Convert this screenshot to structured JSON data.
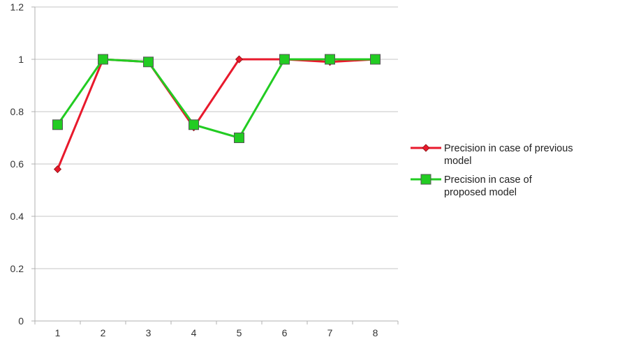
{
  "chart_data": {
    "type": "line",
    "categories": [
      "1",
      "2",
      "3",
      "4",
      "5",
      "6",
      "7",
      "8"
    ],
    "ylim": [
      0,
      1.2
    ],
    "yticks": [
      0,
      0.2,
      0.4,
      0.6,
      0.8,
      1,
      1.2
    ],
    "ytick_labels": [
      "0",
      "0.2",
      "0.4",
      "0.6",
      "0.8",
      "1",
      "1.2"
    ],
    "grid": true,
    "legend_position": "right",
    "series": [
      {
        "name": "Precision in case of previous model",
        "name_lines": [
          "Precision in case of previous",
          "model"
        ],
        "color": "#e8192c",
        "marker": "diamond",
        "values": [
          0.58,
          1.0,
          0.99,
          0.74,
          1.0,
          1.0,
          0.99,
          1.0
        ]
      },
      {
        "name": "Precision in case of proposed model",
        "name_lines": [
          "Precision in case of",
          "proposed model"
        ],
        "color": "#22cc22",
        "marker": "square",
        "values": [
          0.75,
          1.0,
          0.99,
          0.75,
          0.7,
          1.0,
          1.0,
          1.0
        ]
      }
    ]
  }
}
